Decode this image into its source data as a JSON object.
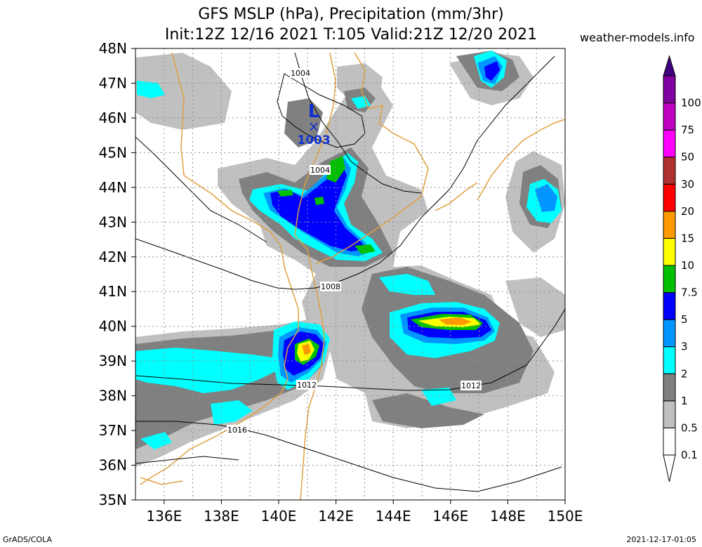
{
  "title": {
    "line1": "GFS MSLP (hPa), Precipitation (mm/3hr)",
    "line2": "Init:12Z 12/16 2021 T:105 Valid:21Z 12/20 2021"
  },
  "site": "weather-models.info",
  "credit": "GrADS/COLA",
  "timestamp": "2021-12-17-01:05",
  "lat_ticks": [
    "48N",
    "47N",
    "46N",
    "45N",
    "44N",
    "43N",
    "42N",
    "41N",
    "40N",
    "39N",
    "38N",
    "37N",
    "36N",
    "35N"
  ],
  "lon_ticks": [
    "136E",
    "138E",
    "140E",
    "142E",
    "144E",
    "146E",
    "148E",
    "150E"
  ],
  "legend": {
    "levels": [
      "0.1",
      "0.5",
      "1",
      "2",
      "3",
      "5",
      "7.5",
      "10",
      "15",
      "20",
      "30",
      "50",
      "75",
      "100"
    ],
    "colors": [
      "#ffffff",
      "#c0c0c0",
      "#808080",
      "#00ffff",
      "#0095ff",
      "#0000ff",
      "#00c000",
      "#ffff00",
      "#ff9900",
      "#ff0000",
      "#b03030",
      "#ff00ff",
      "#c000c0",
      "#8000a0",
      "#400080"
    ]
  },
  "isobars": {
    "labels": [
      "1004",
      "1004",
      "1008",
      "1012",
      "1012",
      "1016"
    ]
  },
  "low": {
    "letter": "L",
    "marker": "×",
    "value": "1003"
  }
}
